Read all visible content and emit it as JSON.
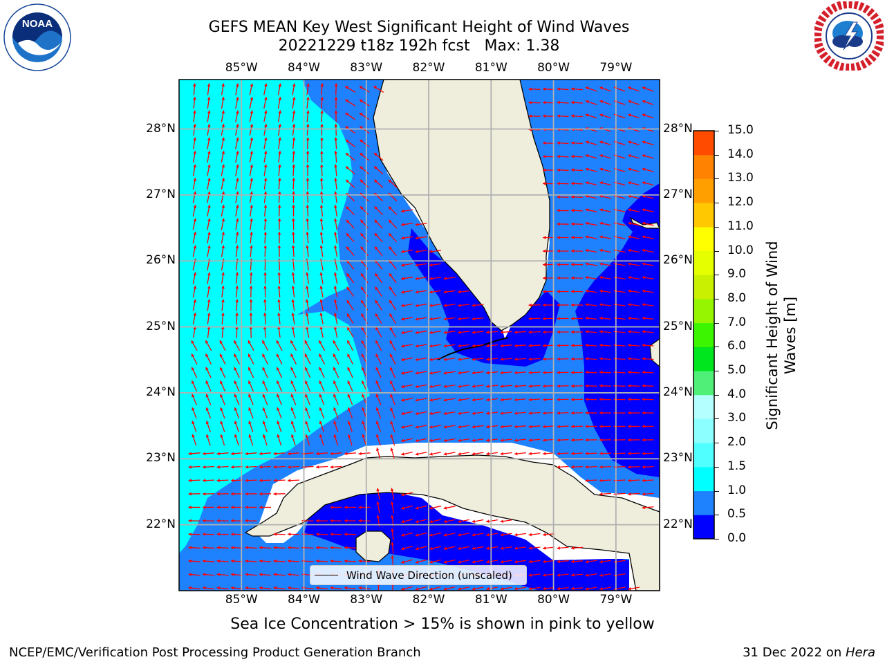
{
  "title_line1": "GEFS MEAN Key West Significant Height of Wind Waves",
  "title_line2": "20221229 t18z 192h fcst   Max: 1.38",
  "caption": "Sea Ice Concentration > 15% is shown in pink to yellow",
  "footer_left": "NCEP/EMC/Verification Post Processing Product Generation Branch",
  "footer_right_prefix": "31 Dec 2022 on ",
  "footer_right_machine": "Hera",
  "legend_label": "Wind Wave Direction (unscaled)",
  "logos": {
    "left": "noaa-logo",
    "right": "nws-logo",
    "left_text": "NOAA"
  },
  "map": {
    "lon_ticks": [
      "85°W",
      "84°W",
      "83°W",
      "82°W",
      "81°W",
      "80°W",
      "79°W"
    ],
    "lat_ticks": [
      "28°N",
      "27°N",
      "26°N",
      "25°N",
      "24°N",
      "23°N",
      "22°N"
    ],
    "lon_values": [
      -85,
      -84,
      -83,
      -82,
      -81,
      -80,
      -79
    ],
    "lat_values": [
      28,
      27,
      26,
      25,
      24,
      23,
      22
    ],
    "extent": {
      "lon_min": -86.0,
      "lon_max": -78.3,
      "lat_min": 21.0,
      "lat_max": 28.75
    },
    "land_color": "#efeedd",
    "arrow_color": "#ff0000",
    "grid_color": "#b0b0b0"
  },
  "colorbar": {
    "label": "Significant Height of Wind Waves [m]",
    "ticks": [
      "0.0",
      "0.5",
      "1.0",
      "1.5",
      "2.0",
      "3.0",
      "4.0",
      "5.0",
      "6.0",
      "7.0",
      "8.0",
      "9.0",
      "10.0",
      "11.0",
      "12.0",
      "13.0",
      "14.0",
      "15.0"
    ],
    "colors": [
      "#0000ff",
      "#1e82ff",
      "#00ffff",
      "#46ffff",
      "#8cffff",
      "#afffff",
      "#50ff78",
      "#00e61e",
      "#46ff00",
      "#9bf500",
      "#c8f000",
      "#e6ff00",
      "#ffff00",
      "#ffdc00",
      "#ffb400",
      "#ff8c00",
      "#ff5000",
      "#ff2800",
      "#ff0000"
    ],
    "band_colors": [
      "#0000ff",
      "#1e82ff",
      "#00ffff",
      "#50ffff",
      "#8cffff",
      "#b4ffff",
      "#50f078",
      "#00e61e",
      "#3cf500",
      "#96f500",
      "#c8f000",
      "#e6ff00",
      "#ffff00",
      "#ffc800",
      "#ffa000",
      "#ff8200",
      "#ff4b00",
      "#ff1e00"
    ]
  }
}
